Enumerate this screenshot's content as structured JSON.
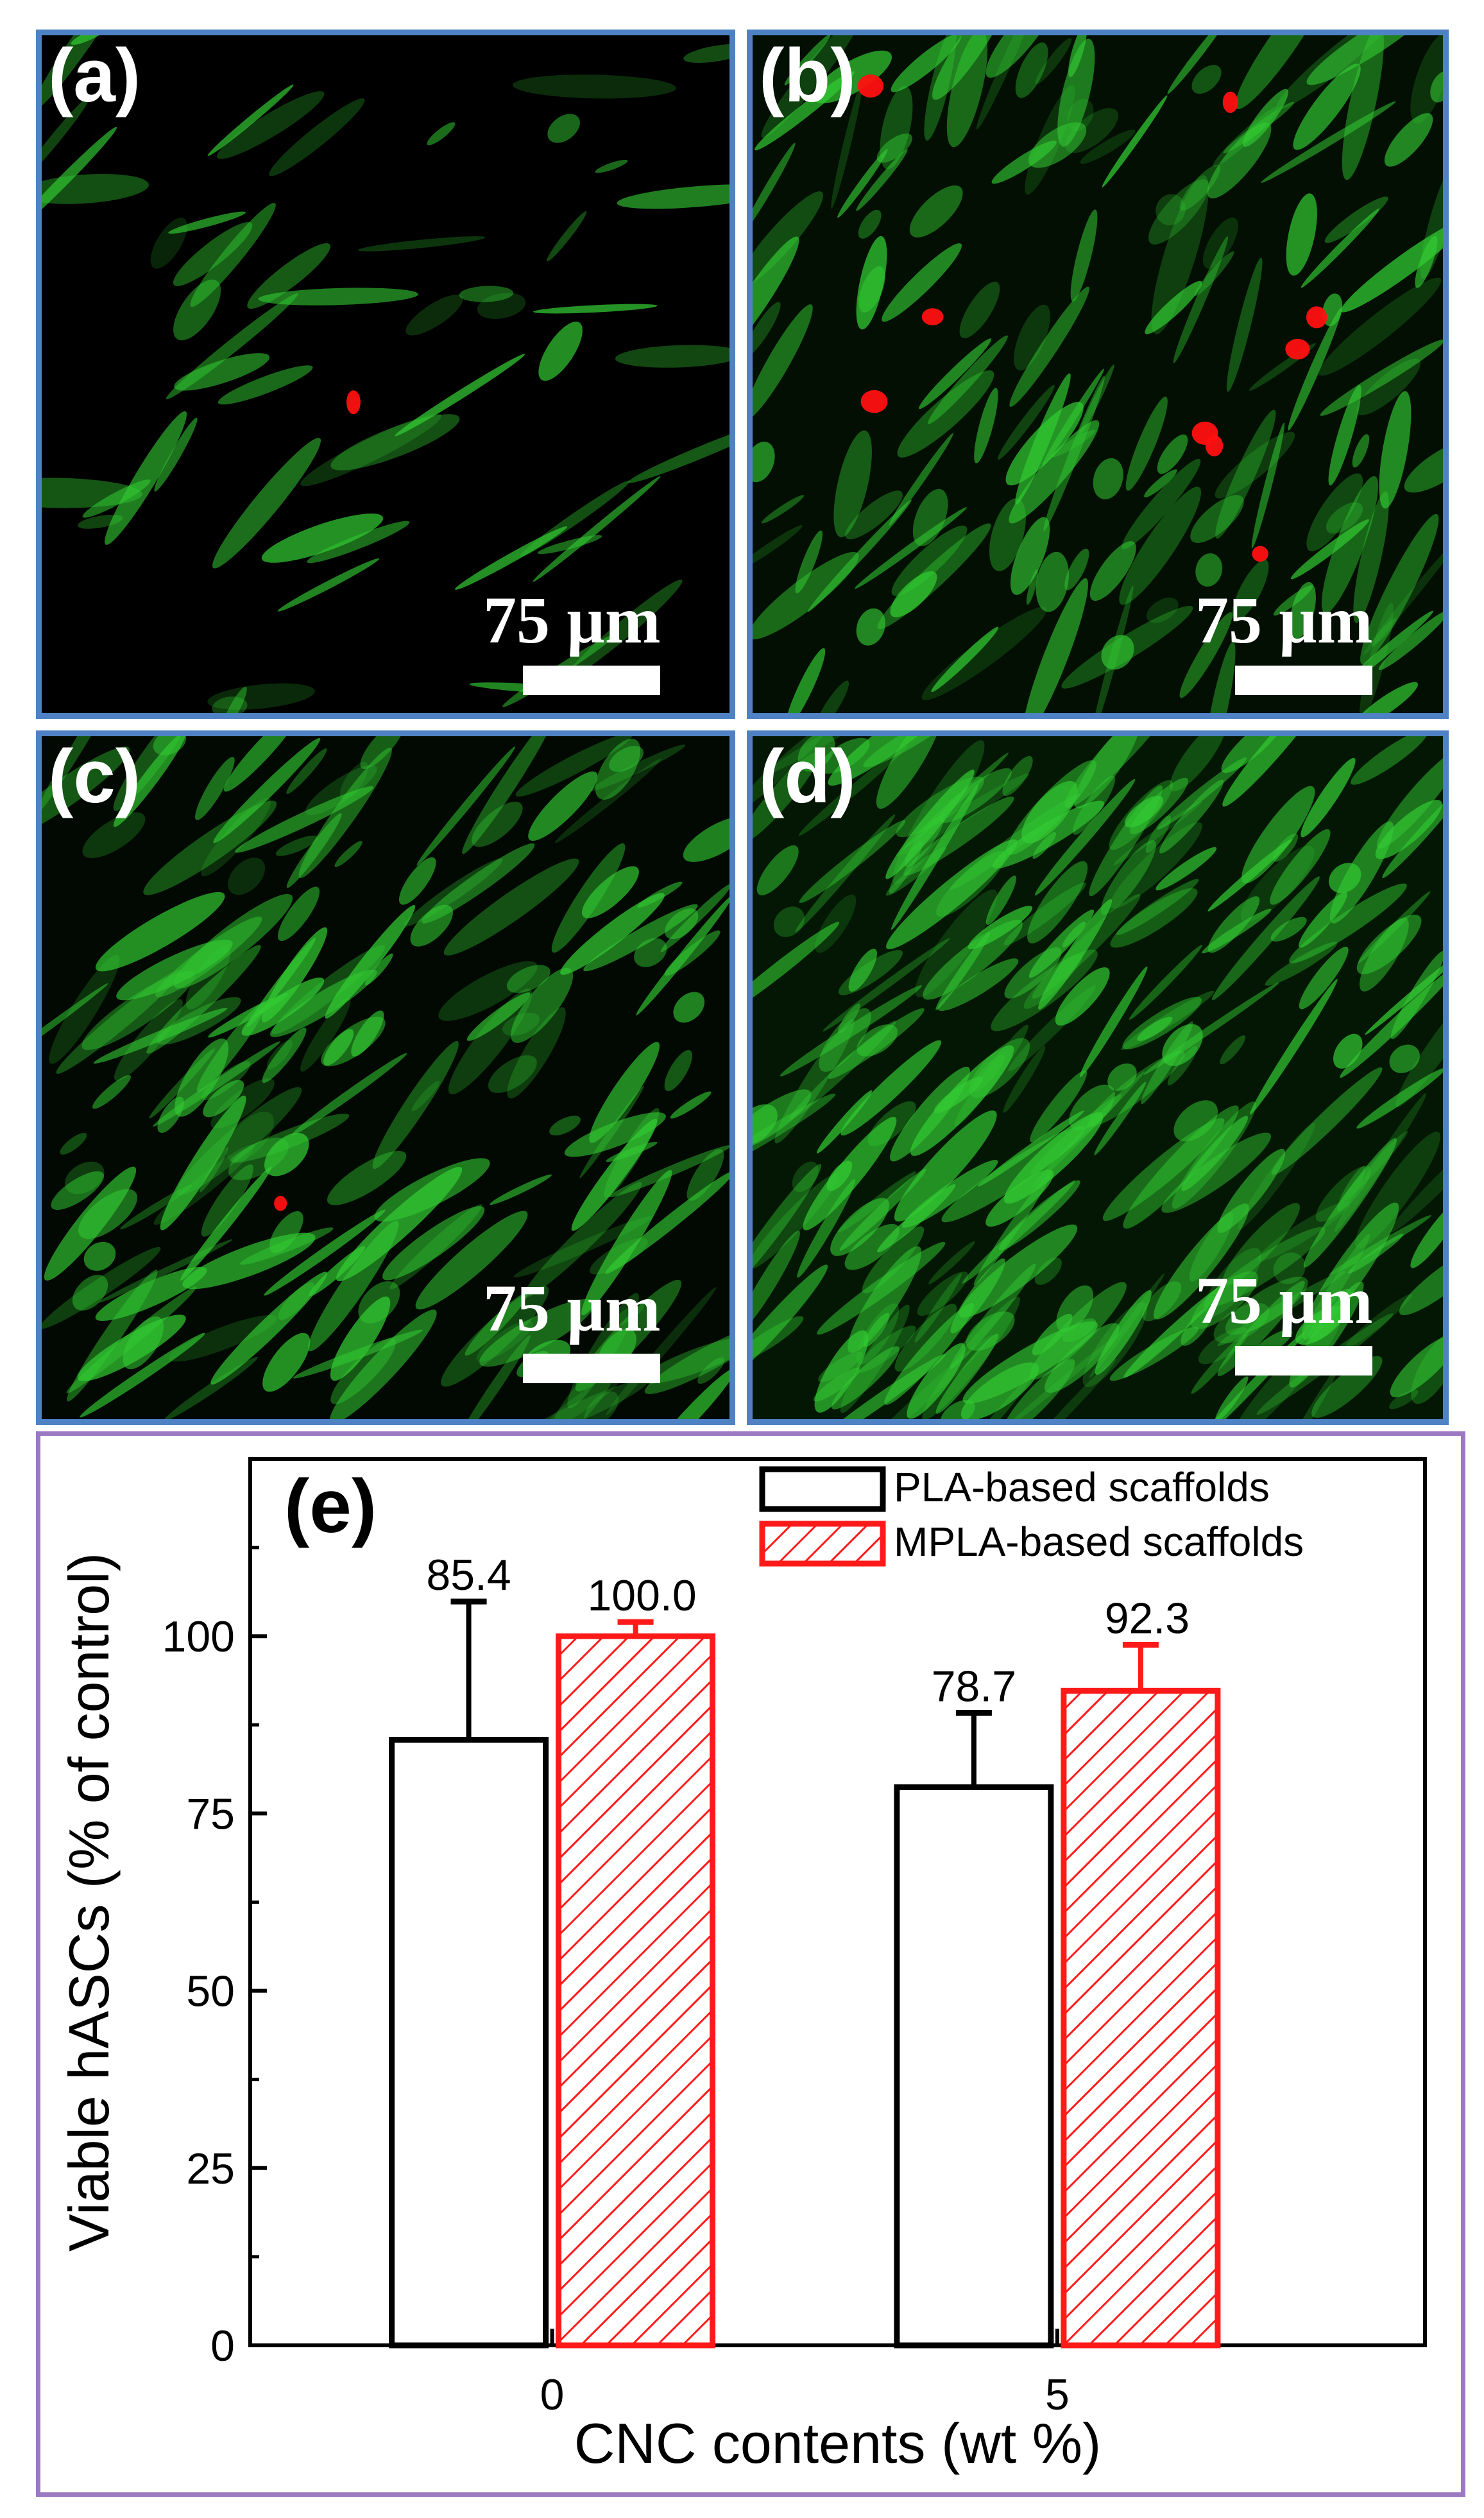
{
  "panels": [
    {
      "id": "a",
      "label": "(a)",
      "scale_bar": "75 µm"
    },
    {
      "id": "b",
      "label": "(b)",
      "scale_bar": "75 µm"
    },
    {
      "id": "c",
      "label": "(c)",
      "scale_bar": "75 µm"
    },
    {
      "id": "d",
      "label": "(d)",
      "scale_bar": "75 µm"
    }
  ],
  "colors": {
    "panel_border": "#4f82c4",
    "chart_border": "#9c7ac2",
    "pla": "#000000",
    "mpla": "#ff1a1a",
    "cell_green": "#33cc33",
    "cell_red": "#ff1010"
  },
  "chart_data": {
    "type": "bar",
    "panel_label": "(e)",
    "categories": [
      "0",
      "5"
    ],
    "series": [
      {
        "name": "PLA-based scaffolds",
        "values": [
          85.4,
          78.7
        ],
        "errors": [
          19.5,
          10.5
        ],
        "value_labels": [
          "85.4",
          "78.7"
        ],
        "style": "open black"
      },
      {
        "name": "MPLA-based scaffolds",
        "values": [
          100.0,
          92.3
        ],
        "errors": [
          2.0,
          6.5
        ],
        "value_labels": [
          "100.0",
          "92.3"
        ],
        "style": "red hatched"
      }
    ],
    "xlabel": "CNC contents (wt %)",
    "ylabel": "Viable hASCs (% of control)",
    "ylim": [
      0,
      125
    ],
    "yticks": [
      "0",
      "25",
      "50",
      "75",
      "100"
    ],
    "legend": "top-right",
    "grid": false
  }
}
